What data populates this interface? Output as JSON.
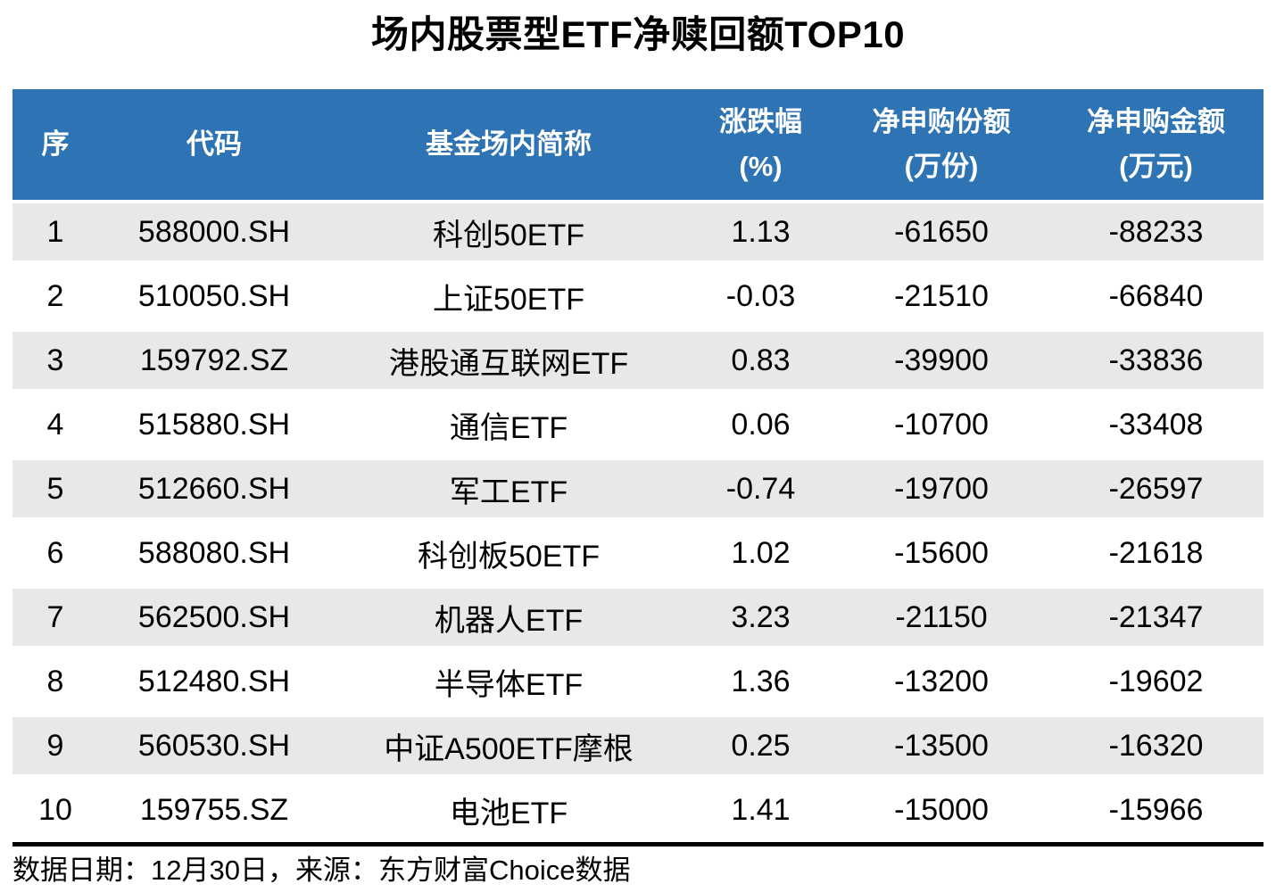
{
  "title": "场内股票型ETF净赎回额TOP10",
  "table": {
    "columns": [
      {
        "label": "序",
        "unit": ""
      },
      {
        "label": "代码",
        "unit": ""
      },
      {
        "label": "基金场内简称",
        "unit": ""
      },
      {
        "label": "涨跌幅",
        "unit": "(%)"
      },
      {
        "label": "净申购份额",
        "unit": "(万份)"
      },
      {
        "label": "净申购金额",
        "unit": "(万元)"
      }
    ],
    "rows": [
      [
        "1",
        "588000.SH",
        "科创50ETF",
        "1.13",
        "-61650",
        "-88233"
      ],
      [
        "2",
        "510050.SH",
        "上证50ETF",
        "-0.03",
        "-21510",
        "-66840"
      ],
      [
        "3",
        "159792.SZ",
        "港股通互联网ETF",
        "0.83",
        "-39900",
        "-33836"
      ],
      [
        "4",
        "515880.SH",
        "通信ETF",
        "0.06",
        "-10700",
        "-33408"
      ],
      [
        "5",
        "512660.SH",
        "军工ETF",
        "-0.74",
        "-19700",
        "-26597"
      ],
      [
        "6",
        "588080.SH",
        "科创板50ETF",
        "1.02",
        "-15600",
        "-21618"
      ],
      [
        "7",
        "562500.SH",
        "机器人ETF",
        "3.23",
        "-21150",
        "-21347"
      ],
      [
        "8",
        "512480.SH",
        "半导体ETF",
        "1.36",
        "-13200",
        "-19602"
      ],
      [
        "9",
        "560530.SH",
        "中证A500ETF摩根",
        "0.25",
        "-13500",
        "-16320"
      ],
      [
        "10",
        "159755.SZ",
        "电池ETF",
        "1.41",
        "-15000",
        "-15966"
      ]
    ]
  },
  "footer": {
    "source_note": "数据日期：12月30日，来源：东方财富Choice数据"
  },
  "colors": {
    "header_bg": "#2E74B5",
    "header_text": "#FFFFFF",
    "stripe_bg": "#E8E8E8",
    "rule": "#000000"
  },
  "chart_data": {
    "type": "table",
    "title": "场内股票型ETF净赎回额TOP10",
    "columns": [
      "序",
      "代码",
      "基金场内简称",
      "涨跌幅(%)",
      "净申购份额(万份)",
      "净申购金额(万元)"
    ],
    "rows": [
      [
        1,
        "588000.SH",
        "科创50ETF",
        1.13,
        -61650,
        -88233
      ],
      [
        2,
        "510050.SH",
        "上证50ETF",
        -0.03,
        -21510,
        -66840
      ],
      [
        3,
        "159792.SZ",
        "港股通互联网ETF",
        0.83,
        -39900,
        -33836
      ],
      [
        4,
        "515880.SH",
        "通信ETF",
        0.06,
        -10700,
        -33408
      ],
      [
        5,
        "512660.SH",
        "军工ETF",
        -0.74,
        -19700,
        -26597
      ],
      [
        6,
        "588080.SH",
        "科创板50ETF",
        1.02,
        -15600,
        -21618
      ],
      [
        7,
        "562500.SH",
        "机器人ETF",
        3.23,
        -21150,
        -21347
      ],
      [
        8,
        "512480.SH",
        "半导体ETF",
        1.36,
        -13200,
        -19602
      ],
      [
        9,
        "560530.SH",
        "中证A500ETF摩根",
        0.25,
        -13500,
        -16320
      ],
      [
        10,
        "159755.SZ",
        "电池ETF",
        1.41,
        -15000,
        -15966
      ]
    ],
    "source_note": "数据日期：12月30日，来源：东方财富Choice数据",
    "layout": {
      "banded_rows": true,
      "band_color": "#E8E8E8",
      "header_color": "#2E74B5"
    }
  }
}
